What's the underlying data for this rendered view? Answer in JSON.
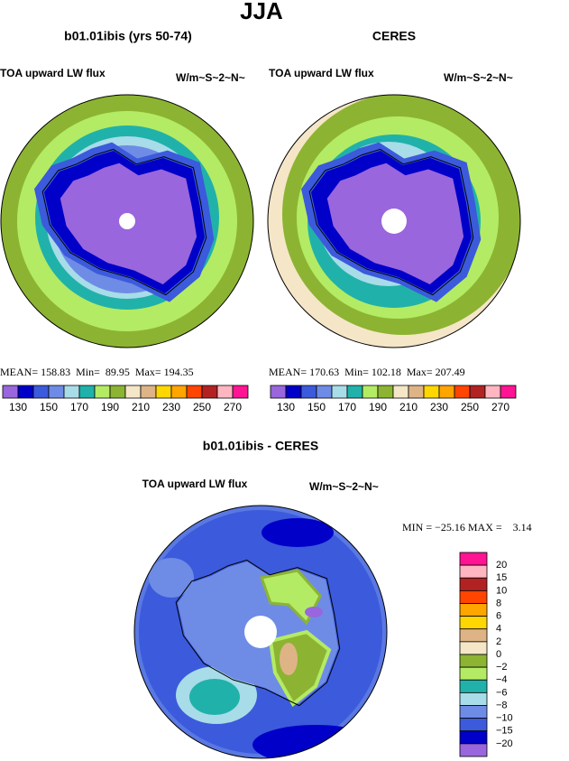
{
  "title": "JJA",
  "panels": [
    {
      "title": "b01.01ibis (yrs 50-74)",
      "left_label": "TOA upward LW flux",
      "right_label": "W/m~S~2~N~",
      "stats": "MEAN= 158.83  Min=  89.95  Max= 194.35",
      "colorbar": {
        "colors": [
          "#9966dd",
          "#0000c8",
          "#3c5adc",
          "#6e8ce6",
          "#a8dce8",
          "#20b2aa",
          "#b4eb64",
          "#8cb432",
          "#f5e6c8",
          "#deb487",
          "#ffd700",
          "#ffa500",
          "#ff4500",
          "#b22222",
          "#ffb6c1",
          "#ff1493"
        ],
        "labels": [
          130,
          150,
          170,
          190,
          210,
          230,
          250,
          270
        ]
      }
    },
    {
      "title": "CERES",
      "left_label": "TOA upward LW flux",
      "right_label": "W/m~S~2~N~",
      "stats": "MEAN= 170.63  Min= 102.18  Max= 207.49",
      "colorbar": {
        "colors": [
          "#9966dd",
          "#0000c8",
          "#3c5adc",
          "#6e8ce6",
          "#a8dce8",
          "#20b2aa",
          "#b4eb64",
          "#8cb432",
          "#f5e6c8",
          "#deb487",
          "#ffd700",
          "#ffa500",
          "#ff4500",
          "#b22222",
          "#ffb6c1",
          "#ff1493"
        ],
        "labels": [
          130,
          150,
          170,
          190,
          210,
          230,
          250,
          270
        ]
      }
    }
  ],
  "difference": {
    "title": "b01.01ibis - CERES",
    "left_label": "TOA upward LW flux",
    "right_label": "W/m~S~2~N~",
    "stats": "MIN = −25.16 MAX =    3.14",
    "colorbar": {
      "colors": [
        "#ff1493",
        "#ffb6c1",
        "#b22222",
        "#ff4500",
        "#ffa500",
        "#ffd700",
        "#deb487",
        "#f5e6c8",
        "#8cb432",
        "#b4eb64",
        "#20b2aa",
        "#a8dce8",
        "#6e8ce6",
        "#3c5adc",
        "#0000c8",
        "#9966dd"
      ],
      "labels": [
        "20",
        "15",
        "10",
        "8",
        "6",
        "4",
        "2",
        "0",
        "−2",
        "−4",
        "−6",
        "−8",
        "−10",
        "−15",
        "−20"
      ]
    }
  }
}
